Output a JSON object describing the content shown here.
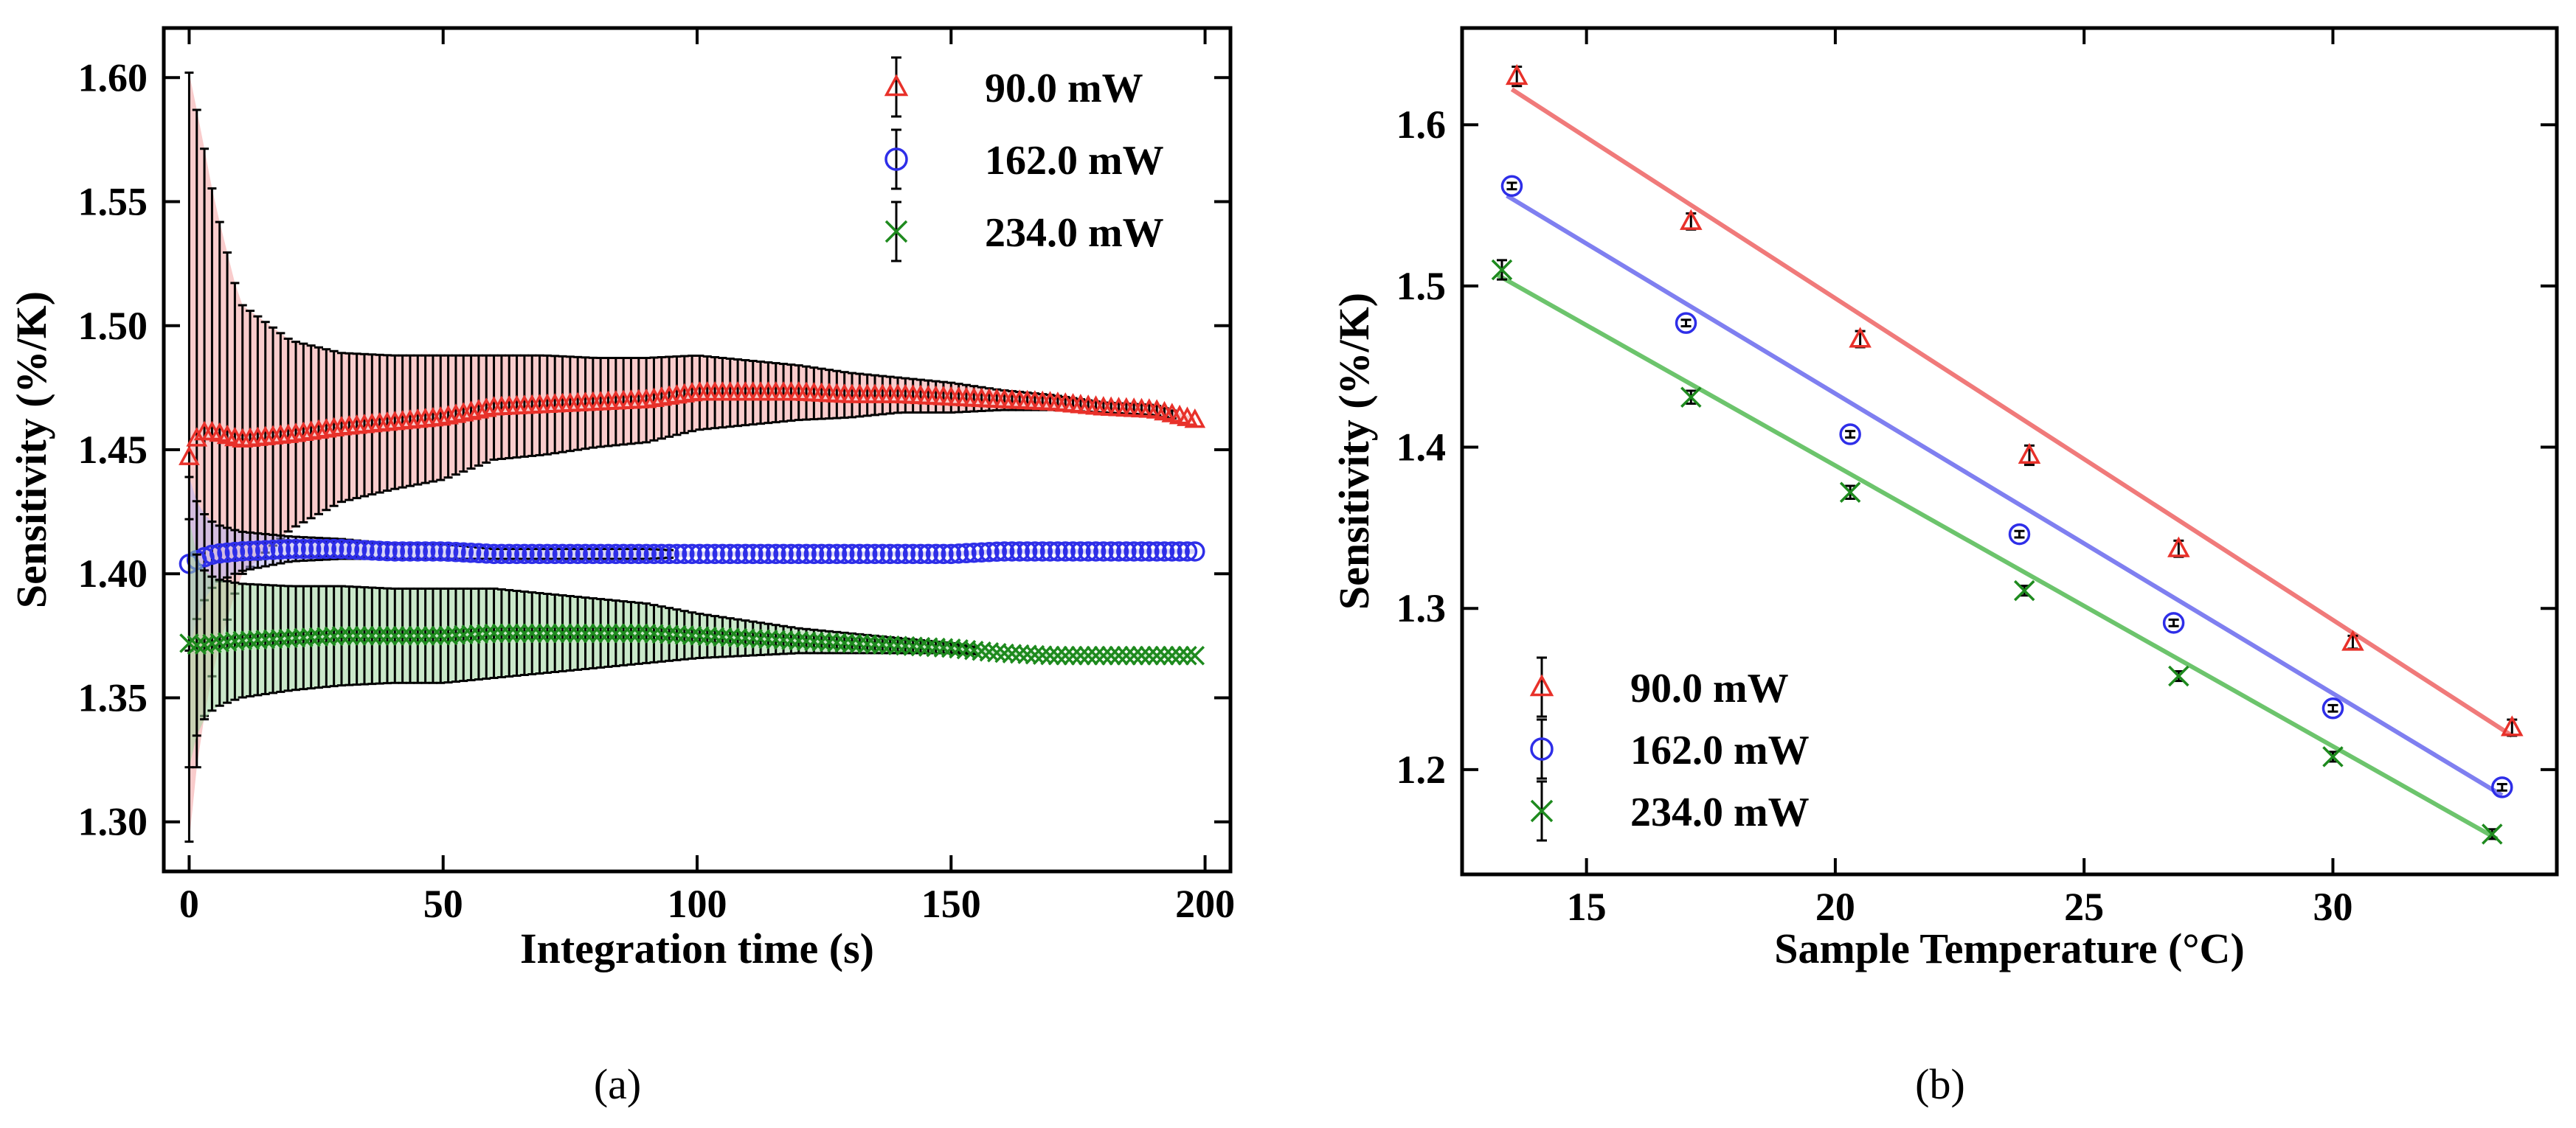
{
  "chart_data": [
    {
      "panel": "(a)",
      "type": "line",
      "title": "",
      "xlabel": "Integration time (s)",
      "ylabel": "Sensitivity (%/K)",
      "xlim": [
        -5,
        205
      ],
      "ylim": [
        1.28,
        1.62
      ],
      "xticks": [
        0,
        50,
        100,
        150,
        200
      ],
      "xtick_labels": [
        "0",
        "50",
        "100",
        "150",
        "200"
      ],
      "yticks": [
        1.3,
        1.35,
        1.4,
        1.45,
        1.5,
        1.55,
        1.6
      ],
      "ytick_labels": [
        "1.30",
        "1.35",
        "1.40",
        "1.45",
        "1.50",
        "1.55",
        "1.60"
      ],
      "grid": false,
      "legend_position": "top-right",
      "error_bars": true,
      "shaded_error_band": true,
      "series": [
        {
          "name": "90.0 mW",
          "marker": "triangle",
          "color": "#e8312a",
          "band_color": "#f4a3a3",
          "x": [
            0,
            2,
            5,
            10,
            20,
            30,
            40,
            50,
            60,
            70,
            80,
            90,
            100,
            110,
            120,
            130,
            140,
            150,
            160,
            170,
            180,
            190,
            198
          ],
          "y": [
            1.447,
            1.457,
            1.457,
            1.454,
            1.456,
            1.459,
            1.461,
            1.463,
            1.467,
            1.468,
            1.469,
            1.47,
            1.473,
            1.473,
            1.473,
            1.472,
            1.472,
            1.471,
            1.47,
            1.469,
            1.467,
            1.466,
            1.462
          ],
          "err": [
            0.155,
            0.125,
            0.093,
            0.055,
            0.038,
            0.03,
            0.027,
            0.025,
            0.021,
            0.02,
            0.018,
            0.017,
            0.015,
            0.013,
            0.011,
            0.009,
            0.007,
            0.006,
            0.004,
            0.003,
            0.002,
            0.002,
            0.001
          ]
        },
        {
          "name": "162.0 mW",
          "marker": "circle",
          "color": "#2e2ee8",
          "band_color": "#b7b0f0",
          "x": [
            0,
            2,
            5,
            10,
            20,
            30,
            40,
            50,
            60,
            70,
            80,
            90,
            100,
            110,
            120,
            130,
            140,
            150,
            160,
            170,
            180,
            190,
            198
          ],
          "y": [
            1.404,
            1.406,
            1.408,
            1.409,
            1.41,
            1.41,
            1.409,
            1.409,
            1.408,
            1.408,
            1.408,
            1.408,
            1.408,
            1.408,
            1.408,
            1.408,
            1.408,
            1.408,
            1.409,
            1.409,
            1.409,
            1.409,
            1.409
          ],
          "err": [
            0.035,
            0.02,
            0.012,
            0.008,
            0.005,
            0.004,
            0.003,
            0.003,
            0.002,
            0.002,
            0.002,
            0.002,
            0.001,
            0.001,
            0.001,
            0.001,
            0.001,
            0.001,
            0.001,
            0.001,
            0.001,
            0.001,
            0.001
          ]
        },
        {
          "name": "234.0 mW",
          "marker": "x",
          "color": "#1e8a1e",
          "band_color": "#9fd69f",
          "x": [
            0,
            2,
            5,
            10,
            20,
            30,
            40,
            50,
            60,
            70,
            80,
            90,
            100,
            110,
            120,
            130,
            140,
            150,
            160,
            170,
            180,
            190,
            198
          ],
          "y": [
            1.372,
            1.371,
            1.372,
            1.373,
            1.374,
            1.375,
            1.375,
            1.375,
            1.376,
            1.376,
            1.376,
            1.376,
            1.375,
            1.374,
            1.373,
            1.372,
            1.371,
            1.37,
            1.368,
            1.367,
            1.367,
            1.367,
            1.367
          ],
          "err": [
            0.05,
            0.032,
            0.026,
            0.023,
            0.021,
            0.02,
            0.019,
            0.019,
            0.018,
            0.016,
            0.014,
            0.012,
            0.009,
            0.007,
            0.005,
            0.004,
            0.003,
            0.002,
            0.001,
            0.001,
            0.001,
            0.001,
            0.001
          ]
        }
      ]
    },
    {
      "panel": "(b)",
      "type": "scatter",
      "title": "",
      "xlabel": "Sample Temperature (°C)",
      "ylabel": "Sensitivity (%/K)",
      "xlim": [
        12.5,
        34.5
      ],
      "ylim": [
        1.135,
        1.66
      ],
      "xticks": [
        15,
        20,
        25,
        30
      ],
      "xtick_labels": [
        "15",
        "20",
        "25",
        "30"
      ],
      "yticks": [
        1.2,
        1.3,
        1.4,
        1.5,
        1.6
      ],
      "ytick_labels": [
        "1.2",
        "1.3",
        "1.4",
        "1.5",
        "1.6"
      ],
      "grid": false,
      "legend_position": "bottom-left",
      "error_bars": true,
      "fit_lines": true,
      "series": [
        {
          "name": "90.0 mW",
          "marker": "triangle",
          "color": "#e8312a",
          "fit_color": "#f07a7a",
          "x": [
            13.6,
            17.1,
            20.5,
            23.9,
            26.9,
            30.4,
            33.6
          ],
          "y": [
            1.63,
            1.54,
            1.467,
            1.395,
            1.337,
            1.279,
            1.226
          ],
          "err": [
            0.006,
            0.005,
            0.005,
            0.006,
            0.005,
            0.004,
            0.005
          ],
          "fit": {
            "x": [
              13.5,
              33.6
            ],
            "y": [
              1.622,
              1.221
            ]
          }
        },
        {
          "name": "162.0 mW",
          "marker": "circle",
          "color": "#2e2ee8",
          "fit_color": "#7f7ff0",
          "x": [
            13.5,
            17.0,
            20.3,
            23.7,
            26.8,
            30.0,
            33.4
          ],
          "y": [
            1.562,
            1.477,
            1.408,
            1.346,
            1.291,
            1.238,
            1.189
          ],
          "err": [
            0.002,
            0.002,
            0.002,
            0.002,
            0.002,
            0.002,
            0.002
          ],
          "fit": {
            "x": [
              13.4,
              33.4
            ],
            "y": [
              1.556,
              1.184
            ]
          }
        },
        {
          "name": "234.0 mW",
          "marker": "x",
          "color": "#1e8a1e",
          "fit_color": "#6cc46c",
          "x": [
            13.3,
            17.1,
            20.3,
            23.8,
            26.9,
            30.0,
            33.2
          ],
          "y": [
            1.51,
            1.431,
            1.372,
            1.311,
            1.258,
            1.208,
            1.16
          ],
          "err": [
            0.006,
            0.004,
            0.004,
            0.003,
            0.003,
            0.003,
            0.003
          ],
          "fit": {
            "x": [
              13.2,
              33.3
            ],
            "y": [
              1.507,
              1.157
            ]
          }
        }
      ]
    }
  ],
  "captions": {
    "a": "(a)",
    "b": "(b)"
  }
}
